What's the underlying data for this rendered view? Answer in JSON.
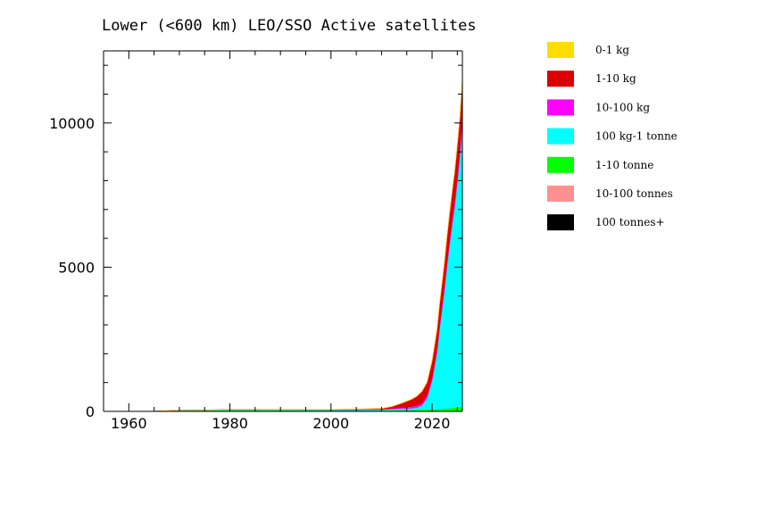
{
  "chart_data": {
    "type": "area",
    "title": "Lower (<600 km) LEO/SSO Active satellites",
    "xlabel": "",
    "ylabel": "",
    "xlim": [
      1955,
      2026
    ],
    "ylim": [
      0,
      12500
    ],
    "x_ticks": [
      1960,
      1980,
      2000,
      2020
    ],
    "y_ticks": [
      0,
      5000,
      10000
    ],
    "x_tick_labels": [
      "1960",
      "1980",
      "2000",
      "2020"
    ],
    "y_tick_labels": [
      "0",
      "5000",
      "10000"
    ],
    "grid": false,
    "legend_position": "right",
    "stacking": "stacked",
    "x": [
      1955,
      1965,
      1970,
      1980,
      1990,
      2000,
      2005,
      2010,
      2012,
      2014,
      2016,
      2017,
      2018,
      2019,
      2019.5,
      2020,
      2020.5,
      2021,
      2021.5,
      2022,
      2022.5,
      2023,
      2023.5,
      2024,
      2024.5,
      2025,
      2025.5,
      2026
    ],
    "series": [
      {
        "name": "100 tonnes+",
        "color": "#000000",
        "values": [
          0,
          0,
          0,
          0,
          1,
          1,
          1,
          1,
          1,
          1,
          1,
          1,
          1,
          1,
          1,
          1,
          1,
          1,
          1,
          1,
          1,
          1,
          1,
          1,
          1,
          1,
          1,
          1
        ]
      },
      {
        "name": "10-100 tonnes",
        "color": "#ff9090",
        "values": [
          0,
          0,
          3,
          5,
          5,
          4,
          4,
          4,
          4,
          4,
          4,
          4,
          4,
          4,
          4,
          4,
          4,
          4,
          4,
          4,
          4,
          4,
          4,
          4,
          4,
          4,
          4,
          4
        ]
      },
      {
        "name": "1-10 tonne",
        "color": "#00ff00",
        "values": [
          0,
          2,
          20,
          35,
          35,
          30,
          30,
          30,
          35,
          40,
          45,
          50,
          55,
          60,
          60,
          65,
          70,
          75,
          80,
          85,
          90,
          100,
          110,
          120,
          130,
          140,
          150,
          160
        ]
      },
      {
        "name": "100 kg-1 tonne",
        "color": "#00ffff",
        "values": [
          0,
          5,
          15,
          20,
          20,
          25,
          25,
          30,
          40,
          50,
          60,
          80,
          150,
          400,
          700,
          1000,
          1500,
          2000,
          2800,
          3500,
          4200,
          5000,
          5700,
          6400,
          7000,
          7800,
          8700,
          9900
        ]
      },
      {
        "name": "10-100 kg",
        "color": "#ff00ff",
        "values": [
          0,
          0,
          2,
          3,
          4,
          6,
          8,
          15,
          25,
          40,
          60,
          70,
          80,
          90,
          100,
          110,
          120,
          130,
          140,
          150,
          160,
          170,
          180,
          190,
          200,
          210,
          230,
          260
        ]
      },
      {
        "name": "1-10 kg",
        "color": "#dd0000",
        "values": [
          0,
          0,
          0,
          0,
          0,
          2,
          5,
          20,
          60,
          150,
          250,
          320,
          400,
          450,
          500,
          550,
          600,
          650,
          700,
          750,
          800,
          850,
          900,
          950,
          1000,
          1050,
          1100,
          1200
        ]
      },
      {
        "name": "0-1 kg",
        "color": "#ffdd00",
        "values": [
          0,
          0,
          0,
          0,
          0,
          0,
          0,
          0,
          2,
          3,
          4,
          5,
          5,
          5,
          5,
          5,
          5,
          5,
          6,
          6,
          6,
          6,
          6,
          6,
          7,
          8,
          10,
          40
        ]
      }
    ],
    "legend": [
      {
        "label": "0-1 kg",
        "color": "#ffdd00"
      },
      {
        "label": "1-10 kg",
        "color": "#dd0000"
      },
      {
        "label": "10-100 kg",
        "color": "#ff00ff"
      },
      {
        "label": "100 kg-1 tonne",
        "color": "#00ffff"
      },
      {
        "label": "1-10 tonne",
        "color": "#00ff00"
      },
      {
        "label": "10-100 tonnes",
        "color": "#ff9090"
      },
      {
        "label": "100 tonnes+",
        "color": "#000000"
      }
    ]
  }
}
